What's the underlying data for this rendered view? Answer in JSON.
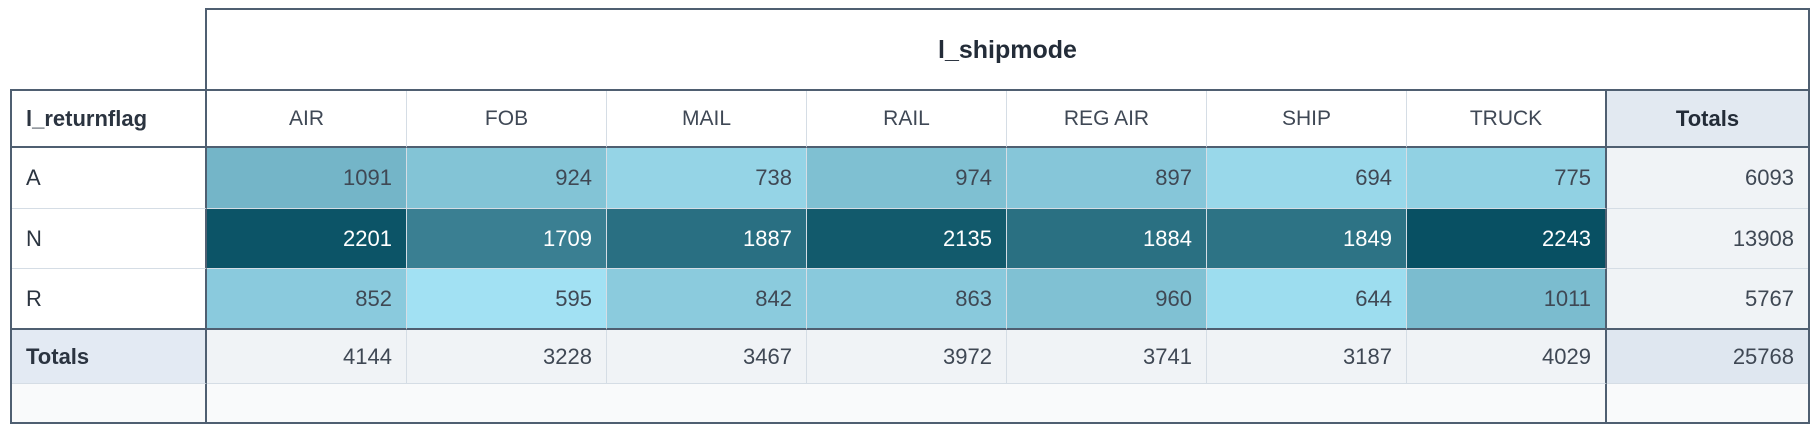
{
  "title": "l_shipmode",
  "row_header": "l_returnflag",
  "totals_label": "Totals",
  "columns": [
    "AIR",
    "FOB",
    "MAIL",
    "RAIL",
    "REG AIR",
    "SHIP",
    "TRUCK"
  ],
  "rows": [
    {
      "label": "A",
      "fg": "#3f4854",
      "cells": [
        {
          "v": "1091",
          "bg": "#74B5C8"
        },
        {
          "v": "924",
          "bg": "#83C4D6"
        },
        {
          "v": "738",
          "bg": "#95D4E6"
        },
        {
          "v": "974",
          "bg": "#7FC0D2"
        },
        {
          "v": "897",
          "bg": "#86C6D9"
        },
        {
          "v": "694",
          "bg": "#99D8EA"
        },
        {
          "v": "775",
          "bg": "#91D1E3"
        }
      ],
      "total": "6093"
    },
    {
      "label": "N",
      "fg": "#ffffff",
      "cells": [
        {
          "v": "2201",
          "bg": "#0C5467"
        },
        {
          "v": "1709",
          "bg": "#3A7F92"
        },
        {
          "v": "1887",
          "bg": "#296F82"
        },
        {
          "v": "2135",
          "bg": "#125A6C"
        },
        {
          "v": "1884",
          "bg": "#2A7082"
        },
        {
          "v": "1849",
          "bg": "#2D7385"
        },
        {
          "v": "2243",
          "bg": "#085063"
        }
      ],
      "total": "13908"
    },
    {
      "label": "R",
      "fg": "#3f4854",
      "cells": [
        {
          "v": "852",
          "bg": "#8ACADD"
        },
        {
          "v": "595",
          "bg": "#A2E1F3"
        },
        {
          "v": "842",
          "bg": "#8BCBDD"
        },
        {
          "v": "863",
          "bg": "#89C9DC"
        },
        {
          "v": "960",
          "bg": "#80C1D3"
        },
        {
          "v": "644",
          "bg": "#9DDDEF"
        },
        {
          "v": "1011",
          "bg": "#7BBCCF"
        }
      ],
      "total": "5767"
    }
  ],
  "totals_row": {
    "label": "Totals",
    "values": [
      "4144",
      "3228",
      "3467",
      "3972",
      "3741",
      "3187",
      "4029"
    ],
    "grand": "25768"
  },
  "colors": {
    "border_dark": "#4f5f71",
    "border_light": "#d5dde5",
    "totals_header_bg": "#e2e9f1",
    "totals_cell_bg": "#f0f3f6",
    "totals_label_bg": "#e3eaf3",
    "grand_total_bg": "#dfe7f0",
    "empty_row_bg": "#f9fafb"
  },
  "chart_data": {
    "type": "heatmap",
    "title": "l_shipmode",
    "x_label": "l_shipmode",
    "y_label": "l_returnflag",
    "x_categories": [
      "AIR",
      "FOB",
      "MAIL",
      "RAIL",
      "REG AIR",
      "SHIP",
      "TRUCK"
    ],
    "y_categories": [
      "A",
      "N",
      "R"
    ],
    "values": [
      [
        1091,
        924,
        738,
        974,
        897,
        694,
        775
      ],
      [
        2201,
        1709,
        1887,
        2135,
        1884,
        1849,
        2243
      ],
      [
        852,
        595,
        842,
        863,
        960,
        644,
        1011
      ]
    ],
    "row_totals": [
      6093,
      13908,
      5767
    ],
    "col_totals": [
      4144,
      3228,
      3467,
      3972,
      3741,
      3187,
      4029
    ],
    "grand_total": 25768,
    "color_scale": {
      "min_value": 595,
      "max_value": 2243,
      "min_color": "#A2E1F3",
      "max_color": "#085063"
    },
    "legend": "off",
    "grid": "on"
  }
}
